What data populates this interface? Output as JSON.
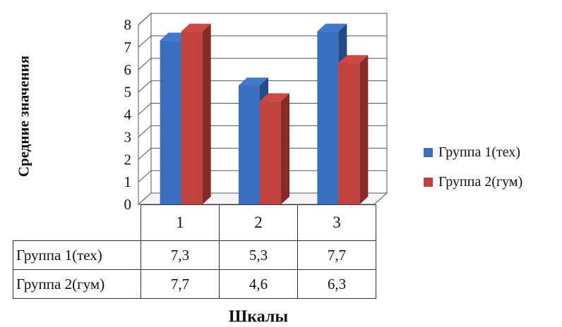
{
  "chart_data": {
    "type": "bar",
    "categories": [
      "1",
      "2",
      "3"
    ],
    "series": [
      {
        "name": "Группа 1(тех)",
        "values": [
          7.3,
          5.3,
          7.7
        ],
        "color": "#3a6fbf",
        "shade": "#234a85"
      },
      {
        "name": "Группа 2(гум)",
        "values": [
          7.7,
          4.6,
          6.3
        ],
        "color": "#c0433f",
        "shade": "#862a27"
      }
    ],
    "ylabel": "Средние значения",
    "xlabel": "Шкалы",
    "ylim": [
      0,
      8
    ],
    "yticks": [
      "0",
      "1",
      "2",
      "3",
      "4",
      "5",
      "6",
      "7",
      "8"
    ],
    "grid": true,
    "legend": "right",
    "table": {
      "rows": [
        {
          "label": "Группа 1(тех)",
          "cells": [
            "7,3",
            "5,3",
            "7,7"
          ]
        },
        {
          "label": "Группа 2(гум)",
          "cells": [
            "7,7",
            "4,6",
            "6,3"
          ]
        }
      ]
    }
  }
}
